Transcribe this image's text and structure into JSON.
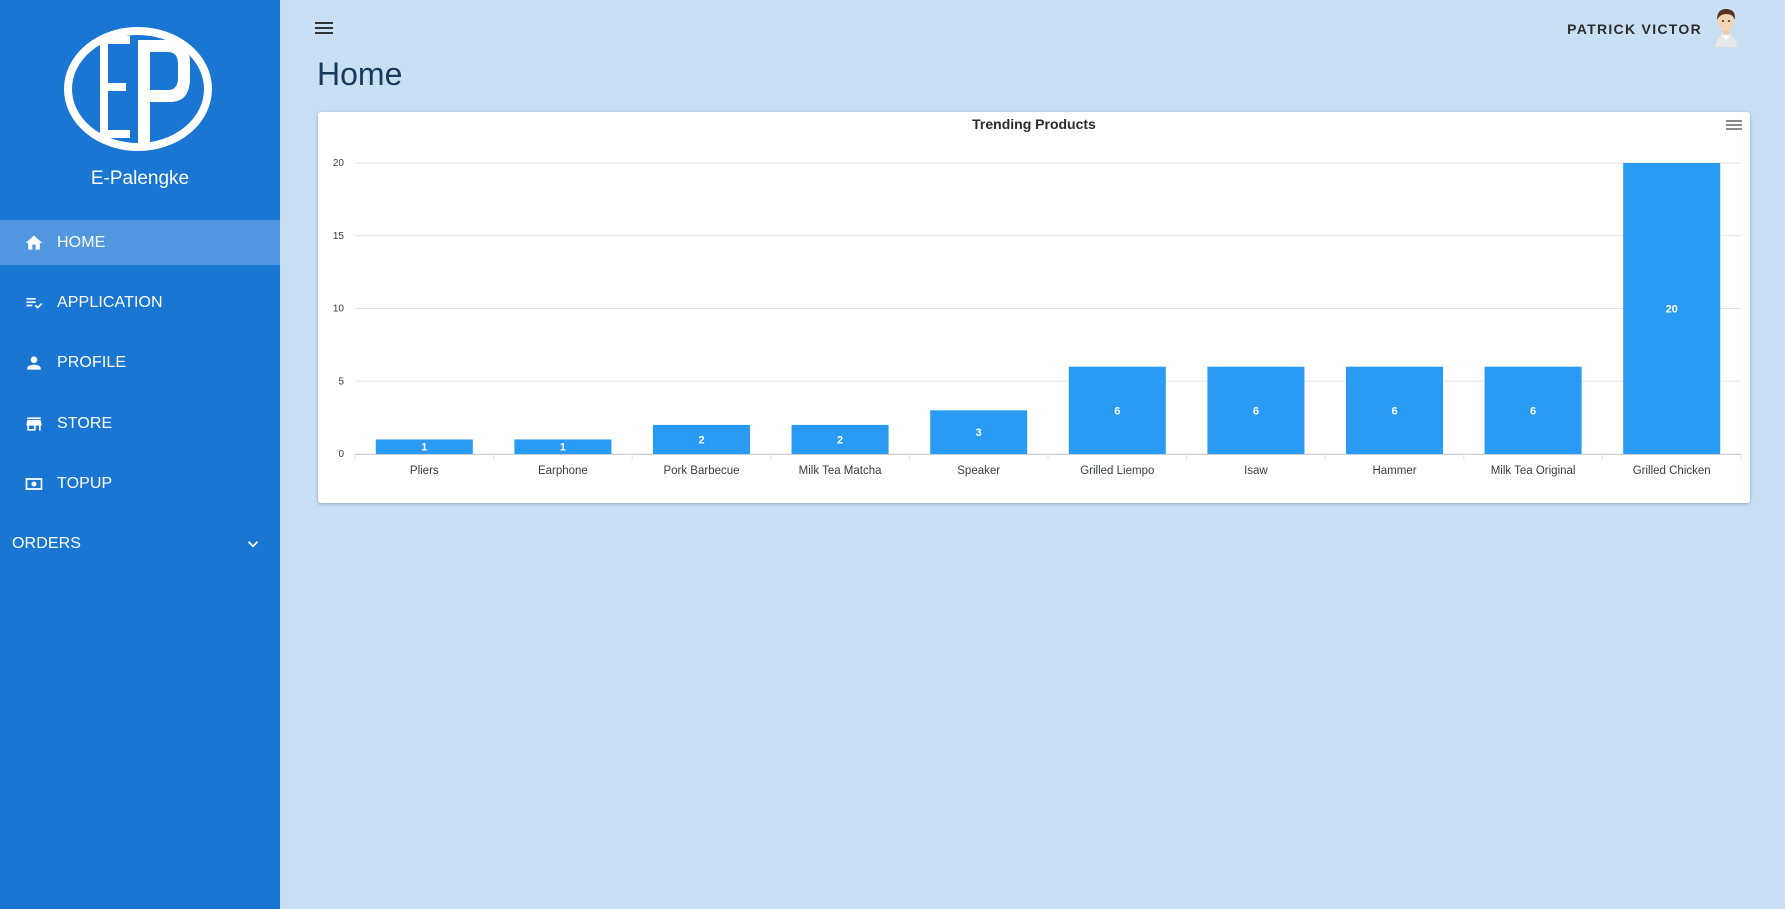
{
  "sidebar": {
    "brand": "E-Palengke",
    "items": [
      {
        "label": "HOME",
        "icon": "home-icon",
        "active": true
      },
      {
        "label": "APPLICATION",
        "icon": "checklist-icon",
        "active": false
      },
      {
        "label": "PROFILE",
        "icon": "person-icon",
        "active": false
      },
      {
        "label": "STORE",
        "icon": "store-icon",
        "active": false
      },
      {
        "label": "TOPUP",
        "icon": "cash-icon",
        "active": false
      }
    ],
    "orders_label": "ORDERS"
  },
  "header": {
    "user_name": "PATRICK VICTOR"
  },
  "page": {
    "title": "Home"
  },
  "colors": {
    "sidebar": "#1976d2",
    "background": "#c8dff4",
    "bar": "#2a9bf4",
    "active_item": "#5197e0"
  },
  "chart_data": {
    "type": "bar",
    "title": "Trending Products",
    "categories": [
      "Pliers",
      "Earphone",
      "Pork Barbecue",
      "Milk Tea Matcha",
      "Speaker",
      "Grilled Liempo",
      "Isaw",
      "Hammer",
      "Milk Tea Original",
      "Grilled Chicken"
    ],
    "values": [
      1,
      1,
      2,
      2,
      3,
      6,
      6,
      6,
      6,
      20
    ],
    "y_ticks": [
      "0",
      "5",
      "10",
      "15",
      "20"
    ],
    "ylim": [
      0,
      20
    ],
    "grid": true
  }
}
